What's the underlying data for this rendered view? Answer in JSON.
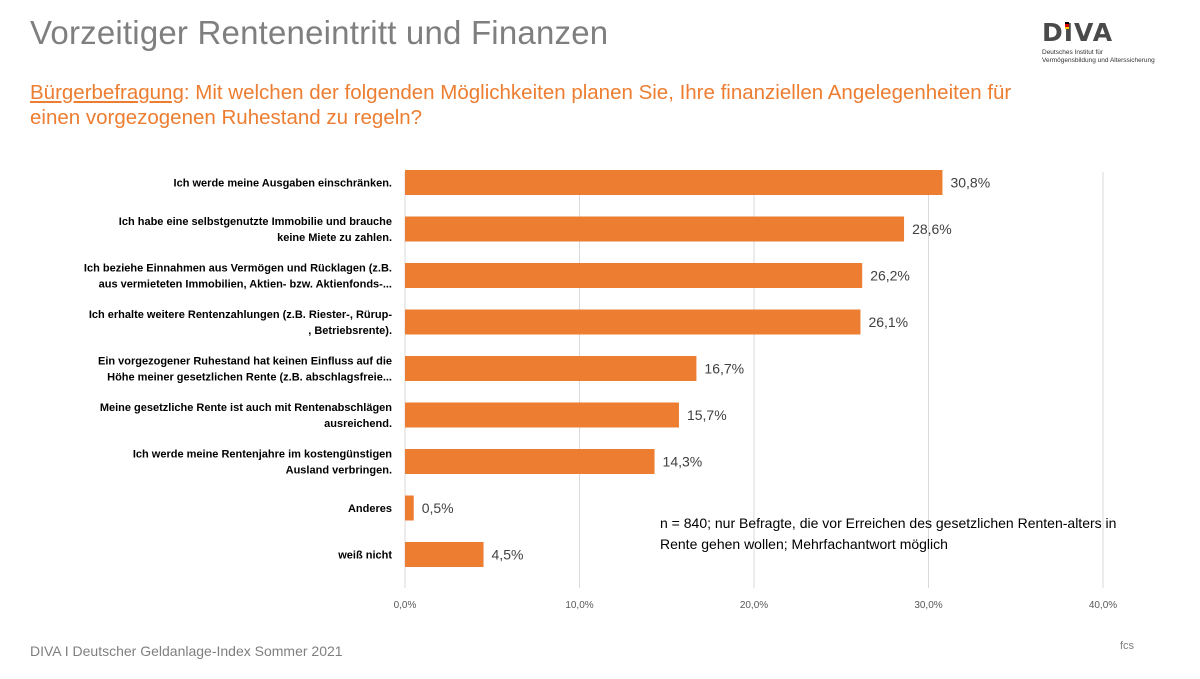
{
  "header": {
    "title": "Vorzeitiger Renteneintritt und Finanzen",
    "question_label": "Bürgerbefragung",
    "question_text": ": Mit welchen der folgenden Möglichkeiten planen Sie, Ihre finanziellen Angelegenheiten für einen vorgezogenen Ruhestand zu regeln?"
  },
  "logo": {
    "name": "DIVA",
    "line1": "Deutsches Institut für",
    "line2": "Vermögensbildung und Alterssicherung",
    "flag_colors": [
      "#000000",
      "#dd0000",
      "#ffce00"
    ]
  },
  "footer": {
    "source": "DIVA I Deutscher Geldanlage-Index Sommer 2021",
    "mark": "fcs"
  },
  "note": "n = 840; nur Befragte, die vor Erreichen des gesetzlichen Renten-alters in Rente gehen wollen; Mehrfachantwort möglich",
  "chart_data": {
    "type": "bar",
    "orientation": "horizontal",
    "categories": [
      [
        "Ich werde meine Ausgaben einschränken."
      ],
      [
        "Ich habe eine selbstgenutzte Immobilie und brauche",
        "keine Miete zu zahlen."
      ],
      [
        "Ich beziehe Einnahmen aus Vermögen und Rücklagen (z.B.",
        "aus vermieteten Immobilien, Aktien- bzw. Aktienfonds-..."
      ],
      [
        "Ich erhalte weitere Rentenzahlungen (z.B. Riester-, Rürup-",
        ", Betriebsrente)."
      ],
      [
        "Ein vorgezogener Ruhestand hat keinen Einfluss auf die",
        "Höhe meiner gesetzlichen Rente (z.B. abschlagsfreie..."
      ],
      [
        "Meine gesetzliche Rente ist auch mit Rentenabschlägen",
        "ausreichend."
      ],
      [
        "Ich werde meine Rentenjahre im kostengünstigen",
        "Ausland verbringen."
      ],
      [
        "Anderes"
      ],
      [
        "weiß nicht"
      ]
    ],
    "values": [
      30.8,
      28.6,
      26.2,
      26.1,
      16.7,
      15.7,
      14.3,
      0.5,
      4.5
    ],
    "value_labels": [
      "30,8%",
      "28,6%",
      "26,2%",
      "26,1%",
      "16,7%",
      "15,7%",
      "14,3%",
      "0,5%",
      "4,5%"
    ],
    "xlim": [
      0,
      40
    ],
    "xticks": [
      "0,0%",
      "10,0%",
      "20,0%",
      "30,0%",
      "40,0%"
    ],
    "xtick_values": [
      0,
      10,
      20,
      30,
      40
    ],
    "grid": true,
    "bar_color": "#ed7d31",
    "grid_color": "#d9d9d9"
  }
}
